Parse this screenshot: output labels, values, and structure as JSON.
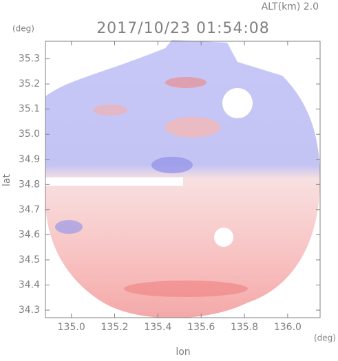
{
  "chart_data": {
    "type": "image",
    "title": "2017/10/23 01:54:08",
    "subtitle": "ALT(km) 2.0",
    "y_unit": "(deg)",
    "x_unit": "(deg)",
    "x_label": "lon",
    "y_label": "lat",
    "xlim": [
      134.88,
      136.15
    ],
    "ylim": [
      34.27,
      35.37
    ],
    "xticks": [
      {
        "value": 135,
        "label": "135.0"
      },
      135.2,
      135.4,
      135.6,
      135.8,
      {
        "value": 136,
        "label": "136.0"
      }
    ],
    "yticks": [
      35.3,
      35.2,
      35.1,
      {
        "value": 35,
        "label": "35.0"
      },
      34.9,
      34.8,
      34.7,
      34.6,
      34.5,
      34.4,
      34.3
    ]
  }
}
